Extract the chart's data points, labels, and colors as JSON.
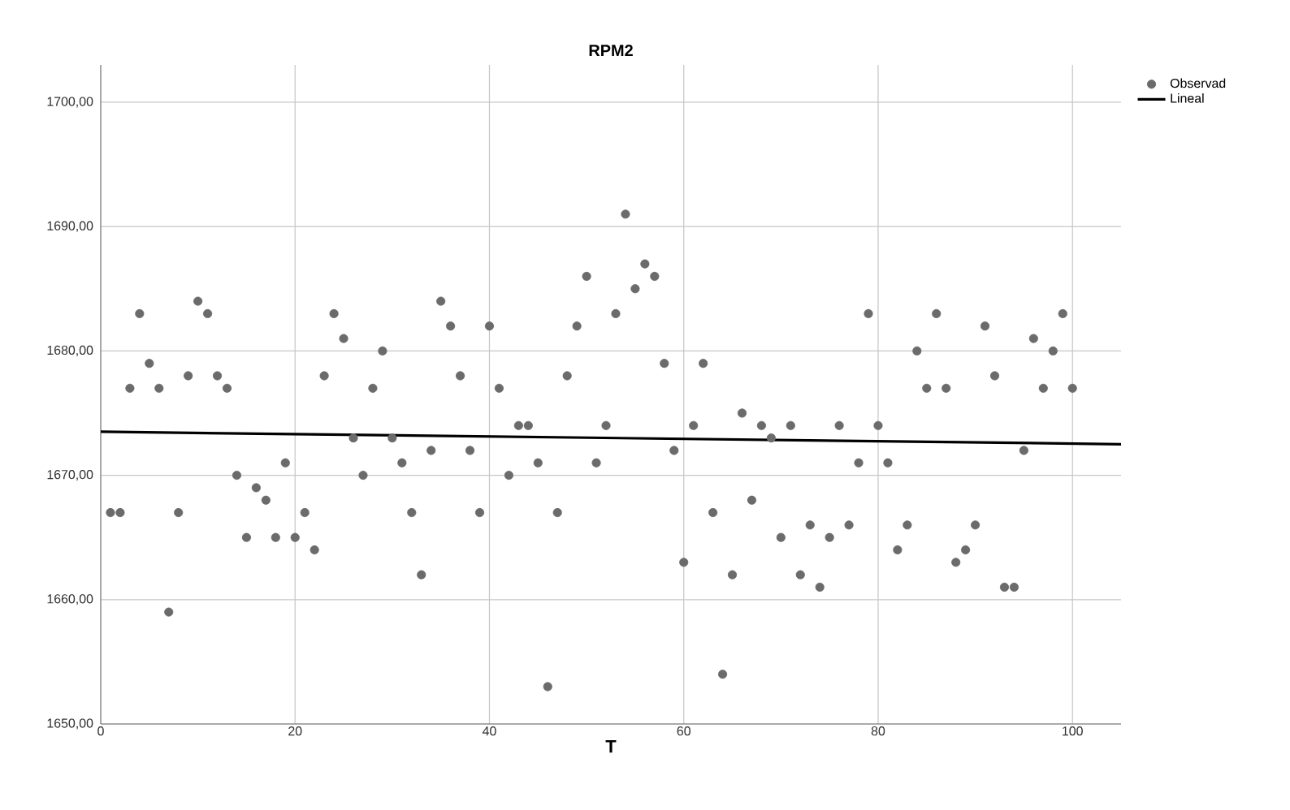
{
  "chart_data": {
    "type": "scatter",
    "title": "RPM2",
    "xlabel": "T",
    "xlim": [
      0,
      105
    ],
    "ylim": [
      1650,
      1703
    ],
    "xticks": [
      0,
      20,
      40,
      60,
      80,
      100
    ],
    "yticks": [
      {
        "value": 1650,
        "label": "1650,00"
      },
      {
        "value": 1660,
        "label": "1660,00"
      },
      {
        "value": 1670,
        "label": "1670,00"
      },
      {
        "value": 1680,
        "label": "1680,00"
      },
      {
        "value": 1690,
        "label": "1690,00"
      },
      {
        "value": 1700,
        "label": "1700,00"
      }
    ],
    "grid": true,
    "legend": "top right",
    "series": [
      {
        "name": "Observad",
        "marker": "circle",
        "color": "#6b6b6b",
        "x": [
          1,
          2,
          3,
          4,
          5,
          6,
          7,
          8,
          9,
          10,
          11,
          12,
          13,
          14,
          15,
          16,
          17,
          18,
          19,
          20,
          21,
          22,
          23,
          24,
          25,
          26,
          27,
          28,
          29,
          30,
          31,
          32,
          33,
          34,
          35,
          36,
          37,
          38,
          39,
          40,
          41,
          42,
          43,
          44,
          45,
          46,
          47,
          48,
          49,
          50,
          51,
          52,
          53,
          54,
          55,
          56,
          57,
          58,
          59,
          60,
          61,
          62,
          63,
          64,
          65,
          66,
          67,
          68,
          69,
          70,
          71,
          72,
          73,
          74,
          75,
          76,
          77,
          78,
          79,
          80,
          81,
          82,
          83,
          84,
          85,
          86,
          87,
          88,
          89,
          90,
          91,
          92,
          93,
          94,
          95,
          96,
          97,
          98,
          99,
          100
        ],
        "values": [
          1667,
          1667,
          1677,
          1683,
          1679,
          1677,
          1659,
          1667,
          1678,
          1684,
          1683,
          1678,
          1677,
          1670,
          1665,
          1669,
          1668,
          1665,
          1671,
          1665,
          1667,
          1664,
          1678,
          1683,
          1681,
          1673,
          1670,
          1677,
          1680,
          1673,
          1671,
          1667,
          1662,
          1672,
          1684,
          1682,
          1678,
          1672,
          1667,
          1682,
          1677,
          1670,
          1674,
          1674,
          1671,
          1653,
          1667,
          1678,
          1682,
          1686,
          1671,
          1674,
          1683,
          1691,
          1685,
          1687,
          1686,
          1679,
          1672,
          1663,
          1674,
          1679,
          1667,
          1654,
          1662,
          1675,
          1668,
          1674,
          1673,
          1665,
          1674,
          1662,
          1666,
          1661,
          1665,
          1674,
          1666,
          1671,
          1683,
          1674,
          1671,
          1664,
          1666,
          1680,
          1677,
          1683,
          1677,
          1663,
          1664,
          1666,
          1682,
          1678,
          1661,
          1661,
          1672,
          1681,
          1677,
          1680,
          1683,
          1677
        ]
      },
      {
        "name": "Lineal",
        "type": "line",
        "marker": "none",
        "color": "#000000",
        "x": [
          0,
          105
        ],
        "values": [
          1673.5,
          1672.5
        ]
      }
    ]
  }
}
